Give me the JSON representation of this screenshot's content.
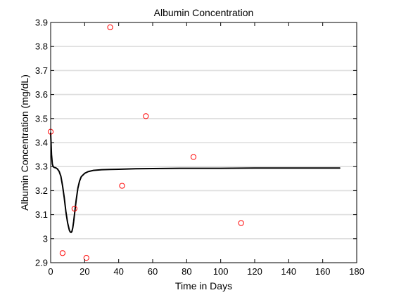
{
  "chart_data": {
    "type": "line",
    "title": "Albumin Concentration",
    "xlabel": "Time in Days",
    "ylabel": "Albumin Concentration (mg/dL)",
    "xlim": [
      0,
      180
    ],
    "ylim": [
      2.9,
      3.9
    ],
    "x_ticks": [
      "0",
      "20",
      "40",
      "60",
      "80",
      "100",
      "120",
      "140",
      "160",
      "180"
    ],
    "y_ticks": [
      "2.9",
      "3",
      "3.1",
      "3.2",
      "3.3",
      "3.4",
      "3.5",
      "3.6",
      "3.7",
      "3.8",
      "3.9"
    ],
    "grid": "horizontal",
    "series": [
      {
        "style": "line",
        "color": "#000000",
        "x": [
          0,
          0.5,
          1,
          1.5,
          2,
          3,
          4,
          5,
          6,
          7,
          8,
          9,
          10,
          11,
          11.5,
          12,
          12.5,
          13,
          13.5,
          14,
          15,
          16,
          17,
          18,
          20,
          22,
          25,
          30,
          35,
          40,
          50,
          60,
          80,
          100,
          120,
          140,
          160,
          170
        ],
        "y": [
          3.44,
          3.35,
          3.31,
          3.3,
          3.297,
          3.295,
          3.29,
          3.28,
          3.26,
          3.22,
          3.17,
          3.11,
          3.065,
          3.035,
          3.028,
          3.026,
          3.03,
          3.045,
          3.07,
          3.1,
          3.16,
          3.21,
          3.24,
          3.258,
          3.272,
          3.279,
          3.284,
          3.287,
          3.288,
          3.289,
          3.291,
          3.292,
          3.293,
          3.293,
          3.294,
          3.294,
          3.294,
          3.294
        ]
      },
      {
        "style": "markers",
        "marker": "circle",
        "color": "#ff0000",
        "x": [
          0,
          7,
          14,
          21,
          35,
          42,
          56,
          84,
          112
        ],
        "y": [
          3.445,
          2.94,
          3.125,
          2.92,
          3.88,
          3.22,
          3.51,
          3.34,
          3.065
        ]
      }
    ]
  }
}
